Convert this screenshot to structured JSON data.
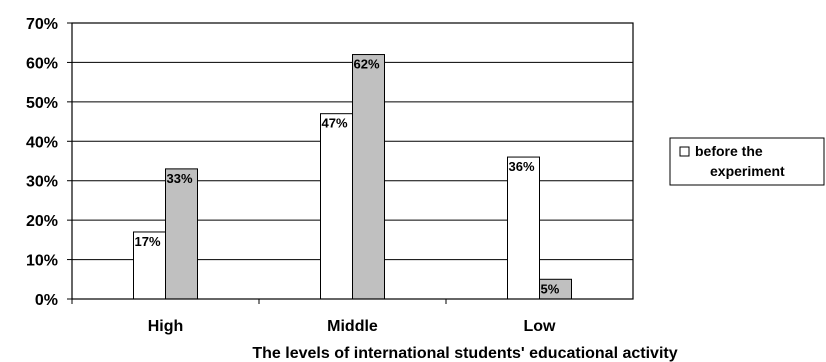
{
  "chart_data": {
    "type": "bar",
    "categories": [
      "High",
      "Middle",
      "Low"
    ],
    "series": [
      {
        "name": "before the experiment",
        "values": [
          17,
          47,
          36
        ],
        "labels": [
          "17%",
          "47%",
          "36%"
        ],
        "color": "#ffffff"
      },
      {
        "values": [
          33,
          62,
          5
        ],
        "labels": [
          "33%",
          "62%",
          "5%"
        ],
        "color": "#c0c0c0"
      }
    ],
    "ylim": [
      0,
      70
    ],
    "yticks": [
      "0%",
      "10%",
      "20%",
      "30%",
      "40%",
      "50%",
      "60%",
      "70%"
    ],
    "xlabel": "The levels of international students' educational activity",
    "ylabel": "",
    "grid": true,
    "legend_position": "right"
  }
}
